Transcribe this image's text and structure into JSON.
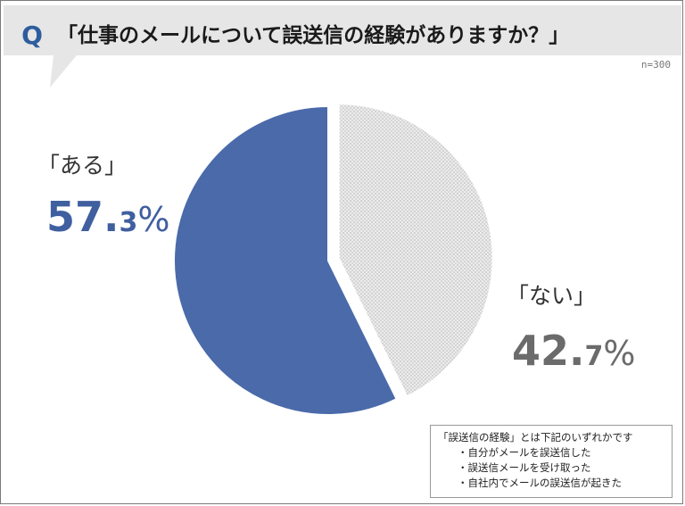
{
  "question": {
    "badge": "Q",
    "text": "「仕事のメールについて誤送信の経験がありますか？」"
  },
  "sample_size": "n=300",
  "chart_data": {
    "type": "pie",
    "title": "「仕事のメールについて誤送信の経験がありますか？」",
    "categories": [
      "「ある」",
      "「ない」"
    ],
    "values": [
      57.3,
      42.7
    ],
    "unit": "%",
    "colors": [
      "#4a6aaa",
      "#e4e4e4"
    ],
    "slices": [
      {
        "name": "「ある」",
        "value": 57.3,
        "int_part": "57.",
        "dec_part": "3",
        "unit": "%",
        "color": "#4a6aaa",
        "exploded": false
      },
      {
        "name": "「ない」",
        "value": 42.7,
        "int_part": "42.",
        "dec_part": "7",
        "unit": "%",
        "color": "#e4e4e4",
        "exploded": true
      }
    ]
  },
  "note": {
    "heading": "「誤送信の経験」とは下記のいずれかです",
    "items": [
      "・自分がメールを誤送信した",
      "・誤送信メールを受け取った",
      "・自社内でメールの誤送信が起きた"
    ]
  }
}
